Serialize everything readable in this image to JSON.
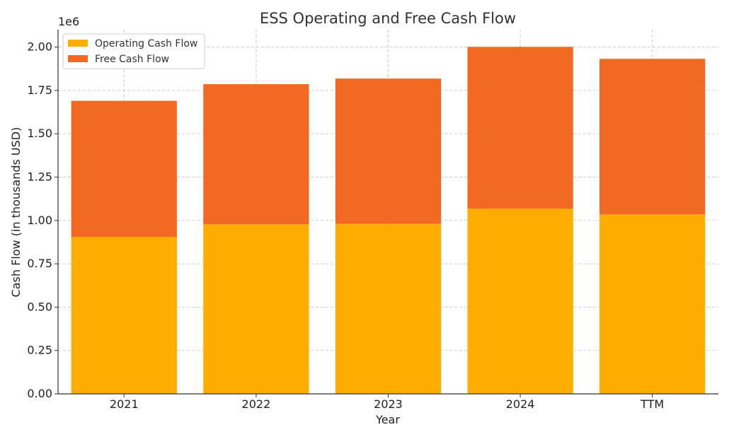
{
  "chart_data": {
    "type": "bar",
    "stacked": true,
    "title": "ESS Operating and Free Cash Flow",
    "xlabel": "Year",
    "ylabel": "Cash Flow (in thousands USD)",
    "offset_text": "1e6",
    "categories": [
      "2021",
      "2022",
      "2023",
      "2024",
      "TTM"
    ],
    "series": [
      {
        "name": "Operating Cash Flow",
        "color": "#ffae00",
        "values": [
          905000,
          978000,
          980000,
          1068000,
          1035000
        ]
      },
      {
        "name": "Free Cash Flow",
        "color": "#f26a21",
        "values": [
          785000,
          808000,
          838000,
          933000,
          897000
        ]
      }
    ],
    "ylim": [
      0,
      2100000
    ],
    "yticks": [
      0,
      250000,
      500000,
      750000,
      1000000,
      1250000,
      1500000,
      1750000,
      2000000
    ],
    "ytick_labels": [
      "0.00",
      "0.25",
      "0.50",
      "0.75",
      "1.00",
      "1.25",
      "1.50",
      "1.75",
      "2.00"
    ],
    "grid": true,
    "legend_position": "upper-left"
  }
}
